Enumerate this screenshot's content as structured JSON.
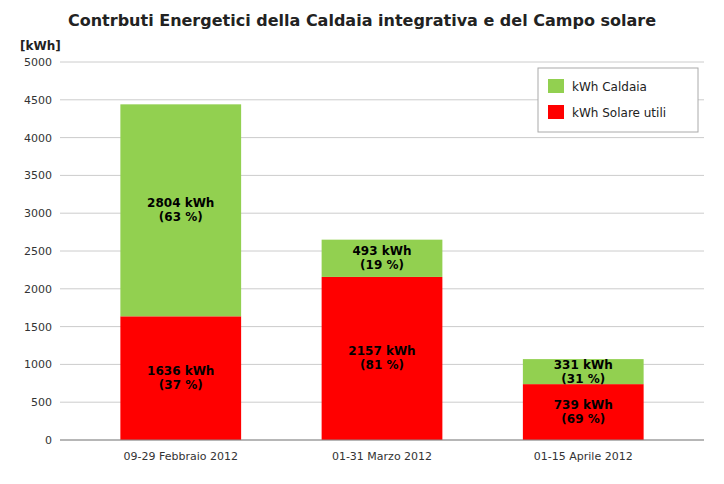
{
  "chart_data": {
    "type": "bar",
    "stacked": true,
    "title": "Contrbuti Energetici della Caldaia integrativa e del Campo solare",
    "y_label": "[kWh]",
    "categories": [
      "09-29 Febbraio 2012",
      "01-31 Marzo 2012",
      "01-15 Aprile 2012"
    ],
    "series": [
      {
        "name": "kWh Solare utili",
        "color": "#FF0000",
        "values": [
          1636,
          2157,
          739
        ],
        "value_labels": [
          "1636 kWh",
          "2157 kWh",
          "739 kWh"
        ],
        "shares": [
          37,
          81,
          69
        ],
        "share_labels": [
          "(37 %)",
          "(81 %)",
          "(69 %)"
        ]
      },
      {
        "name": "kWh Caldaia",
        "color": "#92D050",
        "values": [
          2804,
          493,
          331
        ],
        "value_labels": [
          "2804 kWh",
          "493 kWh",
          "331 kWh"
        ],
        "shares": [
          63,
          19,
          31
        ],
        "share_labels": [
          "(63 %)",
          "(19 %)",
          "(31 %)"
        ]
      }
    ],
    "ylim": [
      0,
      5000
    ],
    "yticks": [
      0,
      500,
      1000,
      1500,
      2000,
      2500,
      3000,
      3500,
      4000,
      4500,
      5000
    ],
    "grid": true,
    "legend": "upper right",
    "data_labels": true
  }
}
